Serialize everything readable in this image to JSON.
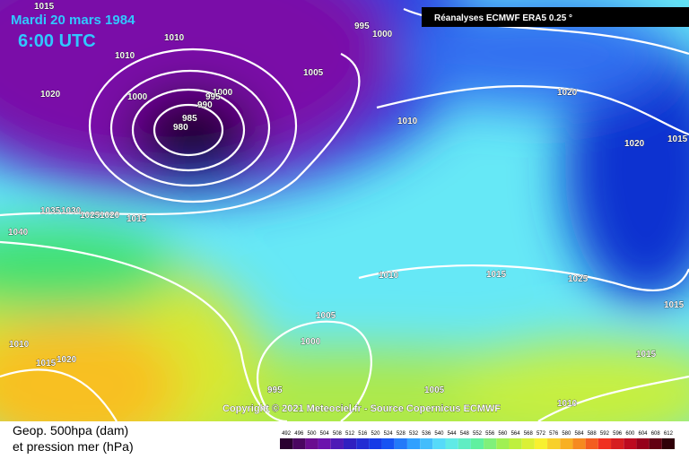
{
  "header": {
    "date": "Mardi 20 mars 1984",
    "time": "6:00 UTC"
  },
  "source_label": "Réanalyses ECMWF ERA5 0.25 °",
  "copyright": "Copyright © 2021 Meteociel.fr - Source Copernicus ECMWF",
  "legend": {
    "line1": "Geop. 500hpa (dam)",
    "line2": "et pression mer (hPa)"
  },
  "scale": [
    492,
    496,
    500,
    504,
    508,
    512,
    516,
    520,
    524,
    528,
    532,
    536,
    540,
    544,
    548,
    552,
    556,
    560,
    564,
    568,
    572,
    576,
    580,
    584,
    588,
    592,
    596,
    600,
    604,
    608,
    612
  ],
  "isobar_labels": [
    "1015",
    "1010",
    "1010",
    "995",
    "1000",
    "1005",
    "1020",
    "1000",
    "1000",
    "995",
    "990",
    "985",
    "980",
    "1010",
    "1020",
    "1020",
    "1015",
    "1035",
    "1030",
    "1025",
    "1020",
    "1015",
    "1040",
    "1010",
    "1015",
    "1025",
    "1015",
    "1005",
    "1000",
    "1010",
    "1015",
    "1020",
    "995",
    "1005",
    "1015",
    "1010"
  ]
}
